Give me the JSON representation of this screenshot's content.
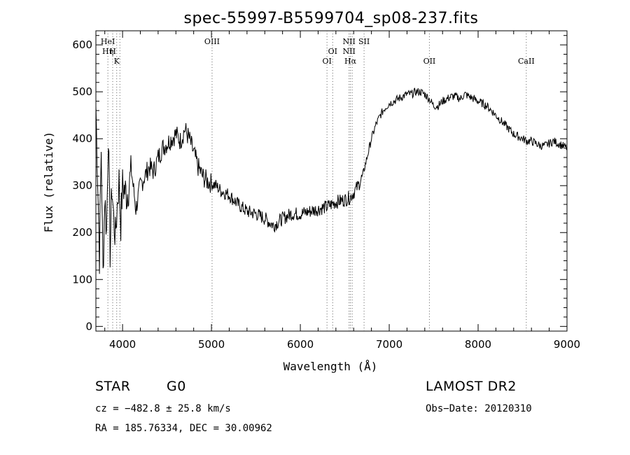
{
  "chart_data": {
    "type": "line",
    "title": "spec-55997-B5599704_sp08-237.fits",
    "xlabel": "Wavelength (Å)",
    "ylabel": "Flux (relative)",
    "xlim": [
      3700,
      9000
    ],
    "ylim": [
      -10,
      630
    ],
    "x_ticks": [
      4000,
      5000,
      6000,
      7000,
      8000,
      9000
    ],
    "y_ticks": [
      0,
      100,
      200,
      300,
      400,
      500,
      600
    ],
    "line_color": "#000000",
    "marker_color": "#666666",
    "series": [
      {
        "x": [
          3700,
          3720,
          3740,
          3760,
          3780,
          3800,
          3820,
          3840,
          3860,
          3880,
          3900,
          3920,
          3940,
          3960,
          3980,
          4000,
          4050,
          4100,
          4150,
          4200,
          4250,
          4300,
          4350,
          4400,
          4450,
          4500,
          4550,
          4600,
          4650,
          4700,
          4750,
          4800,
          4850,
          4900,
          4950,
          5000,
          5050,
          5100,
          5150,
          5200,
          5300,
          5400,
          5500,
          5600,
          5700,
          5800,
          5900,
          6000,
          6100,
          6200,
          6300,
          6400,
          6500,
          6560,
          6600,
          6650,
          6700,
          6750,
          6800,
          6850,
          6900,
          6950,
          7000,
          7050,
          7100,
          7150,
          7200,
          7250,
          7300,
          7350,
          7400,
          7450,
          7500,
          7550,
          7600,
          7650,
          7700,
          7750,
          7800,
          7850,
          7900,
          7950,
          8000,
          8050,
          8100,
          8150,
          8200,
          8250,
          8300,
          8350,
          8400,
          8450,
          8500,
          8550,
          8600,
          8650,
          8700,
          8750,
          8800,
          8850,
          8900,
          8950,
          9000
        ],
        "y": [
          470,
          320,
          150,
          380,
          110,
          280,
          200,
          420,
          160,
          300,
          230,
          190,
          260,
          310,
          220,
          300,
          280,
          330,
          250,
          300,
          320,
          340,
          330,
          360,
          380,
          390,
          400,
          410,
          395,
          420,
          400,
          370,
          340,
          320,
          310,
          305,
          300,
          290,
          285,
          280,
          260,
          245,
          240,
          230,
          215,
          230,
          240,
          240,
          245,
          250,
          255,
          265,
          270,
          275,
          285,
          300,
          320,
          360,
          400,
          430,
          450,
          465,
          475,
          480,
          485,
          490,
          495,
          495,
          500,
          500,
          495,
          485,
          470,
          470,
          480,
          485,
          490,
          490,
          485,
          495,
          490,
          485,
          480,
          475,
          470,
          460,
          450,
          440,
          430,
          420,
          410,
          405,
          400,
          395,
          395,
          390,
          385,
          385,
          390,
          395,
          390,
          385,
          380
        ]
      }
    ],
    "line_markers": [
      {
        "wavelength": 3835,
        "labels": [
          "HeI",
          "Hη"
        ]
      },
      {
        "wavelength": 3889,
        "labels": [
          "",
          "H"
        ]
      },
      {
        "wavelength": 3934,
        "labels": [
          "",
          "",
          "K"
        ]
      },
      {
        "wavelength": 3970,
        "labels": []
      },
      {
        "wavelength": 5007,
        "labels": [
          "OIII"
        ]
      },
      {
        "wavelength": 6300,
        "labels": [
          "",
          "",
          "OI"
        ]
      },
      {
        "wavelength": 6364,
        "labels": [
          "",
          "OI"
        ]
      },
      {
        "wavelength": 6548,
        "labels": [
          "NII",
          "NII"
        ]
      },
      {
        "wavelength": 6563,
        "labels": [
          "",
          "",
          "Hα"
        ]
      },
      {
        "wavelength": 6583,
        "labels": []
      },
      {
        "wavelength": 6717,
        "labels": [
          "SII"
        ]
      },
      {
        "wavelength": 7452,
        "labels": [
          "",
          "",
          "OII"
        ]
      },
      {
        "wavelength": 8542,
        "labels": [
          "",
          "",
          "CaII"
        ]
      }
    ]
  },
  "info": {
    "class": "STAR",
    "subclass": "G0",
    "survey": "LAMOST DR2",
    "cz": "cz = −482.8 ± 25.8 km/s",
    "obs_date": "Obs−Date: 20120310",
    "coords": "RA = 185.76334, DEC =  30.00962"
  }
}
